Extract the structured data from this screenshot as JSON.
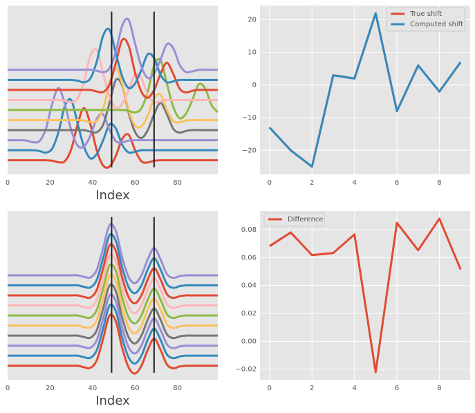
{
  "chart_data": [
    {
      "type": "line",
      "xlabel": "Index",
      "xlim": [
        0,
        99
      ],
      "ylim": [
        -1.4,
        15.4
      ],
      "xticks": [
        0,
        20,
        40,
        60,
        80
      ],
      "grid": false,
      "vlines": {
        "x": [
          49,
          69
        ],
        "ymin": -0.7,
        "ymax": 14.8,
        "color": "#222222"
      },
      "x": [
        0,
        3,
        6,
        9,
        12,
        15,
        18,
        21,
        24,
        27,
        30,
        33,
        36,
        39,
        42,
        45,
        48,
        51,
        54,
        57,
        60,
        63,
        66,
        69,
        72,
        75,
        78,
        81,
        84,
        87,
        90,
        93,
        96,
        99
      ],
      "series": [
        {
          "color": "#E24A33",
          "values": [
            0,
            0,
            0,
            0,
            0,
            0,
            0,
            -0.04,
            -0.2,
            -0.09,
            1.12,
            3.6,
            5.2,
            3.57,
            0.98,
            -0.53,
            -0.63,
            0.45,
            2.13,
            2.55,
            1.03,
            -0.1,
            -0.22,
            -0.04,
            0,
            0,
            0,
            0,
            0,
            0,
            0,
            0,
            0,
            0
          ]
        },
        {
          "color": "#348ABD",
          "values": [
            1,
            1,
            1,
            1,
            1,
            0.92,
            0.76,
            1.16,
            2.83,
            5.41,
            5.98,
            3.64,
            1.33,
            0.19,
            0.63,
            1.99,
            3.55,
            3.16,
            1.52,
            0.78,
            0.85,
            1,
            1,
            1,
            1,
            1,
            1,
            1,
            1,
            1,
            1,
            1,
            1,
            1
          ]
        },
        {
          "color": "#988ED5",
          "values": [
            2,
            2,
            2,
            1.96,
            1.8,
            1.91,
            3.12,
            5.6,
            7.2,
            5.57,
            2.98,
            1.47,
            1.37,
            2.45,
            4.13,
            4.55,
            3.03,
            1.9,
            1.78,
            1.96,
            2,
            2,
            2,
            2,
            2,
            2,
            2,
            2,
            2,
            2,
            2,
            2,
            2,
            2
          ]
        },
        {
          "color": "#777777",
          "values": [
            3,
            3,
            3,
            3,
            3,
            3,
            3,
            3,
            3,
            3,
            3,
            3,
            3,
            2.85,
            2.79,
            3.55,
            5.7,
            7.99,
            7.4,
            4.75,
            2.83,
            2.22,
            2.99,
            4.58,
            5.7,
            4.6,
            3.14,
            2.75,
            2.92,
            3,
            3,
            3,
            3,
            3
          ]
        },
        {
          "color": "#FBC15E",
          "values": [
            4,
            4,
            4,
            4,
            4,
            4,
            4,
            4,
            4,
            4,
            4,
            4,
            3.96,
            3.8,
            3.91,
            5.12,
            7.6,
            9.2,
            7.57,
            4.98,
            3.47,
            3.37,
            4.45,
            6.13,
            6.55,
            5.03,
            3.9,
            3.78,
            3.96,
            4,
            4,
            4,
            4,
            4
          ]
        },
        {
          "color": "#8EBA42",
          "values": [
            5,
            5,
            5,
            5,
            5,
            5,
            5,
            5,
            5,
            5,
            5,
            5,
            5,
            5,
            5,
            5,
            5,
            5,
            5,
            4.92,
            4.76,
            5.16,
            6.83,
            9.41,
            9.98,
            7.64,
            5.33,
            4.19,
            4.63,
            5.99,
            7.55,
            7.16,
            5.52,
            4.78
          ]
        },
        {
          "color": "#FFB5B8",
          "values": [
            6,
            6,
            6,
            6,
            6,
            6,
            6,
            6,
            6,
            5.92,
            5.76,
            6.16,
            7.83,
            10.41,
            10.98,
            8.64,
            6.33,
            5.19,
            5.63,
            6.99,
            8.55,
            8.16,
            6.52,
            5.78,
            5.85,
            6,
            6,
            6,
            6,
            6,
            6,
            6,
            6,
            6
          ]
        },
        {
          "color": "#E24A33",
          "values": [
            7,
            7,
            7,
            7,
            7,
            7,
            7,
            7,
            7,
            7,
            7,
            7,
            7,
            7,
            6.85,
            6.79,
            7.55,
            9.7,
            11.99,
            11.4,
            8.75,
            6.83,
            6.22,
            6.99,
            8.58,
            9.7,
            8.6,
            7.14,
            6.75,
            6.92,
            7,
            7,
            7,
            7
          ]
        },
        {
          "color": "#348ABD",
          "values": [
            8,
            8,
            8,
            8,
            8,
            8,
            8,
            8,
            8,
            8,
            8,
            7.92,
            7.76,
            8.16,
            9.83,
            12.41,
            12.98,
            10.64,
            8.33,
            7.19,
            7.63,
            8.99,
            10.55,
            10.16,
            8.52,
            7.78,
            7.85,
            8,
            8,
            8,
            8,
            8,
            8,
            8
          ]
        },
        {
          "color": "#988ED5",
          "values": [
            9,
            9,
            9,
            9,
            9,
            9,
            9,
            9,
            9,
            9,
            9,
            9,
            9,
            9,
            8.92,
            8.76,
            9.16,
            10.83,
            13.41,
            13.98,
            11.64,
            9.33,
            8.19,
            8.63,
            9.99,
            11.55,
            11.16,
            9.52,
            8.78,
            8.85,
            9,
            9,
            9,
            9
          ]
        }
      ]
    },
    {
      "type": "line",
      "xlim": [
        -0.45,
        9.45
      ],
      "ylim": [
        -27.35,
        24.35
      ],
      "xticks": [
        0,
        2,
        4,
        6,
        8
      ],
      "yticks": [
        {
          "value": -20,
          "label": "−20"
        },
        {
          "value": -10,
          "label": "−10"
        },
        0,
        10,
        20
      ],
      "grid": true,
      "legend": "upper right",
      "x": [
        0,
        1,
        2,
        3,
        4,
        5,
        6,
        7,
        8,
        9
      ],
      "series": [
        {
          "name": "True shift",
          "color": "#E24A33",
          "values": [
            -13,
            -20,
            -25,
            3,
            2,
            22,
            -8,
            6,
            -2,
            7
          ]
        },
        {
          "name": "Computed shift",
          "color": "#348ABD",
          "values": [
            -13,
            -20,
            -25,
            3,
            2,
            22,
            -8,
            6,
            -2,
            7
          ]
        }
      ]
    },
    {
      "type": "line",
      "xlabel": "Index",
      "xlim": [
        0,
        99
      ],
      "ylim": [
        -1.4,
        15.4
      ],
      "xticks": [
        0,
        20,
        40,
        60,
        80
      ],
      "grid": false,
      "vlines": {
        "x": [
          49,
          69
        ],
        "ymin": -0.7,
        "ymax": 14.8,
        "color": "#222222"
      },
      "x": [
        0,
        3,
        6,
        9,
        12,
        15,
        18,
        21,
        24,
        27,
        30,
        33,
        36,
        39,
        42,
        45,
        48,
        51,
        54,
        57,
        60,
        63,
        66,
        69,
        72,
        75,
        78,
        81,
        84,
        87,
        90,
        93,
        96,
        99
      ],
      "series": [
        {
          "color": "#E24A33",
          "values": [
            0,
            0,
            0,
            0,
            0,
            0,
            0,
            0,
            0,
            0,
            0,
            0,
            -0.15,
            -0.21,
            0.55,
            2.7,
            4.99,
            4.4,
            1.75,
            -0.17,
            -0.78,
            -0.01,
            1.58,
            2.7,
            1.6,
            0.14,
            -0.25,
            -0.08,
            0,
            0,
            0,
            0,
            0,
            0
          ]
        },
        {
          "color": "#348ABD",
          "values": [
            1,
            1,
            1,
            1,
            1,
            1,
            1,
            1,
            1,
            1,
            1,
            1,
            0.85,
            0.79,
            1.55,
            3.7,
            5.99,
            5.4,
            2.75,
            0.83,
            0.22,
            0.99,
            2.58,
            3.7,
            2.6,
            1.14,
            0.75,
            0.92,
            1,
            1,
            1,
            1,
            1,
            1
          ]
        },
        {
          "color": "#988ED5",
          "values": [
            2,
            2,
            2,
            2,
            2,
            2,
            2,
            2,
            2,
            2,
            2,
            2,
            1.85,
            1.79,
            2.55,
            4.7,
            6.99,
            6.4,
            3.75,
            1.83,
            1.22,
            1.99,
            3.58,
            4.7,
            3.6,
            2.14,
            1.75,
            1.92,
            2,
            2,
            2,
            2,
            2,
            2
          ]
        },
        {
          "color": "#777777",
          "values": [
            3,
            3,
            3,
            3,
            3,
            3,
            3,
            3,
            3,
            3,
            3,
            3,
            2.85,
            2.79,
            3.55,
            5.7,
            7.99,
            7.4,
            4.75,
            2.83,
            2.22,
            2.99,
            4.58,
            5.7,
            4.6,
            3.14,
            2.75,
            2.92,
            3,
            3,
            3,
            3,
            3,
            3
          ]
        },
        {
          "color": "#FBC15E",
          "values": [
            4,
            4,
            4,
            4,
            4,
            4,
            4,
            4,
            4,
            4,
            4,
            4,
            3.85,
            3.79,
            4.55,
            6.7,
            8.99,
            8.4,
            5.75,
            3.83,
            3.22,
            3.99,
            5.58,
            6.7,
            5.6,
            4.14,
            3.75,
            3.92,
            4,
            4,
            4,
            4,
            4,
            4
          ]
        },
        {
          "color": "#8EBA42",
          "values": [
            5,
            5,
            5,
            5,
            5,
            5,
            5,
            5,
            5,
            5,
            5,
            5,
            4.85,
            4.79,
            5.55,
            7.7,
            9.99,
            9.4,
            6.75,
            4.83,
            4.22,
            4.99,
            6.58,
            7.7,
            6.6,
            5.14,
            4.75,
            4.92,
            5,
            5,
            5,
            5,
            5,
            5
          ]
        },
        {
          "color": "#FFB5B8",
          "values": [
            6,
            6,
            6,
            6,
            6,
            6,
            6,
            6,
            6,
            6,
            6,
            6,
            5.85,
            5.79,
            6.55,
            8.7,
            10.99,
            10.4,
            7.75,
            5.83,
            5.22,
            5.99,
            7.58,
            8.7,
            7.6,
            6.14,
            5.75,
            5.92,
            6,
            6,
            6,
            6,
            6,
            6
          ]
        },
        {
          "color": "#E24A33",
          "values": [
            7,
            7,
            7,
            7,
            7,
            7,
            7,
            7,
            7,
            7,
            7,
            7,
            6.85,
            6.79,
            7.55,
            9.7,
            11.99,
            11.4,
            8.75,
            6.83,
            6.22,
            6.99,
            8.58,
            9.7,
            8.6,
            7.14,
            6.75,
            6.92,
            7,
            7,
            7,
            7,
            7,
            7
          ]
        },
        {
          "color": "#348ABD",
          "values": [
            8,
            8,
            8,
            8,
            8,
            8,
            8,
            8,
            8,
            8,
            8,
            8,
            7.85,
            7.79,
            8.55,
            10.7,
            12.99,
            12.4,
            9.75,
            7.83,
            7.22,
            7.99,
            9.58,
            10.7,
            9.6,
            8.14,
            7.75,
            7.92,
            8,
            8,
            8,
            8,
            8,
            8
          ]
        },
        {
          "color": "#988ED5",
          "values": [
            9,
            9,
            9,
            9,
            9,
            9,
            9,
            9,
            9,
            9,
            9,
            9,
            8.85,
            8.79,
            9.55,
            11.7,
            13.99,
            13.4,
            10.75,
            8.83,
            8.22,
            8.99,
            10.58,
            11.7,
            10.6,
            9.14,
            8.75,
            8.92,
            9,
            9,
            9,
            9,
            9,
            9
          ]
        }
      ]
    },
    {
      "type": "line",
      "xlim": [
        -0.45,
        9.45
      ],
      "ylim": [
        -0.0276,
        0.0934
      ],
      "xticks": [
        0,
        2,
        4,
        6,
        8
      ],
      "yticks": [
        {
          "value": -0.02,
          "label": "−0.02"
        },
        {
          "value": 0,
          "label": "0.00"
        },
        0.02,
        0.04,
        0.06,
        0.08
      ],
      "grid": true,
      "legend": "upper left",
      "x": [
        0,
        1,
        2,
        3,
        4,
        5,
        6,
        7,
        8,
        9
      ],
      "series": [
        {
          "name": "Difference",
          "color": "#E24A33",
          "values": [
            0.0682,
            0.078,
            0.0618,
            0.0633,
            0.0766,
            -0.0221,
            0.0849,
            0.0653,
            0.0879,
            0.0515
          ]
        }
      ]
    }
  ]
}
